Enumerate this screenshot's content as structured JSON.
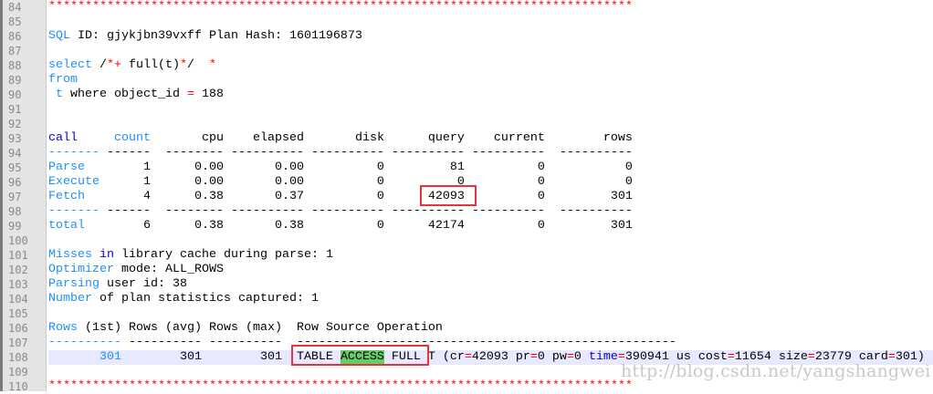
{
  "colors": {
    "keyword_dark": "#0000e0",
    "keyword_light": "#1e8cff",
    "operator": "#ff0000",
    "highlight_match": "#66cc66",
    "current_line": "#e8e8ff",
    "annotation_box": "#e8333a"
  },
  "watermark": "http://blog.csdn.net/yangshangwei",
  "current_line": 108,
  "lines": [
    {
      "n": "84",
      "segs": [
        {
          "t": "********************************************************************************",
          "c": "op"
        }
      ]
    },
    {
      "n": "85",
      "segs": []
    },
    {
      "n": "86",
      "segs": [
        {
          "t": "SQL",
          "c": "k2"
        },
        {
          "t": " ID: gjykjbn39vxff Plan Hash: 1601196873",
          "c": ""
        }
      ]
    },
    {
      "n": "87",
      "segs": []
    },
    {
      "n": "88",
      "segs": [
        {
          "t": "select",
          "c": "k2"
        },
        {
          "t": " /",
          "c": ""
        },
        {
          "t": "*+",
          "c": "op"
        },
        {
          "t": " full(t)",
          "c": ""
        },
        {
          "t": "*",
          "c": "op"
        },
        {
          "t": "/  ",
          "c": ""
        },
        {
          "t": "*",
          "c": "op"
        }
      ]
    },
    {
      "n": "89",
      "segs": [
        {
          "t": "from",
          "c": "k2"
        }
      ]
    },
    {
      "n": "90",
      "segs": [
        {
          "t": " t",
          "c": "k2"
        },
        {
          "t": " where object_id ",
          "c": ""
        },
        {
          "t": "=",
          "c": "op"
        },
        {
          "t": " 188",
          "c": ""
        }
      ]
    },
    {
      "n": "91",
      "segs": []
    },
    {
      "n": "92",
      "segs": []
    },
    {
      "n": "93",
      "segs": [
        {
          "t": "call",
          "c": "k1"
        },
        {
          "t": "     ",
          "c": ""
        },
        {
          "t": "count",
          "c": "k2"
        },
        {
          "t": "       cpu    elapsed       disk      query    current        rows",
          "c": ""
        }
      ]
    },
    {
      "n": "94",
      "segs": [
        {
          "t": "-------",
          "c": "k2"
        },
        {
          "t": " ------  -------- ---------- ---------- ---------- ----------  ----------",
          "c": ""
        }
      ]
    },
    {
      "n": "95",
      "segs": [
        {
          "t": "Parse",
          "c": "k2"
        },
        {
          "t": "        1      0.00       0.00          0         81          0           0",
          "c": ""
        }
      ]
    },
    {
      "n": "96",
      "segs": [
        {
          "t": "Execute",
          "c": "k2"
        },
        {
          "t": "      1      0.00       0.00          0          0          0           0",
          "c": ""
        }
      ]
    },
    {
      "n": "97",
      "segs": [
        {
          "t": "Fetch",
          "c": "k2"
        },
        {
          "t": "        4      0.38       0.37          0      42093          0         301",
          "c": ""
        }
      ]
    },
    {
      "n": "98",
      "segs": [
        {
          "t": "-------",
          "c": "k2"
        },
        {
          "t": " ------  -------- ---------- ---------- ---------- ----------  ----------",
          "c": ""
        }
      ]
    },
    {
      "n": "99",
      "segs": [
        {
          "t": "total",
          "c": "k2"
        },
        {
          "t": "        6      0.38       0.38          0      42174          0         301",
          "c": ""
        }
      ]
    },
    {
      "n": "100",
      "segs": []
    },
    {
      "n": "101",
      "segs": [
        {
          "t": "Misses",
          "c": "k2"
        },
        {
          "t": " ",
          "c": ""
        },
        {
          "t": "in",
          "c": "k1"
        },
        {
          "t": " library cache during parse: 1",
          "c": ""
        }
      ]
    },
    {
      "n": "102",
      "segs": [
        {
          "t": "Optimizer",
          "c": "k2"
        },
        {
          "t": " mode: ALL_ROWS",
          "c": ""
        }
      ]
    },
    {
      "n": "103",
      "segs": [
        {
          "t": "Parsing",
          "c": "k2"
        },
        {
          "t": " user id: 38",
          "c": ""
        }
      ]
    },
    {
      "n": "104",
      "segs": [
        {
          "t": "Number",
          "c": "k2"
        },
        {
          "t": " of plan statistics captured: 1",
          "c": ""
        }
      ]
    },
    {
      "n": "105",
      "segs": []
    },
    {
      "n": "106",
      "segs": [
        {
          "t": "Rows",
          "c": "k2"
        },
        {
          "t": " (1st) Rows (avg) Rows (max)  Row Source Operation",
          "c": ""
        }
      ]
    },
    {
      "n": "107",
      "segs": [
        {
          "t": "----------",
          "c": "k2"
        },
        {
          "t": " ---------- ----------  ----------------------------------------------------",
          "c": ""
        }
      ]
    },
    {
      "n": "108",
      "segs": [
        {
          "t": "       301",
          "c": "k2"
        },
        {
          "t": "        301        301  TABLE ",
          "c": ""
        },
        {
          "t": "ACCESS",
          "c": "ac"
        },
        {
          "t": " FULL T (cr",
          "c": ""
        },
        {
          "t": "=",
          "c": "op"
        },
        {
          "t": "42093 pr",
          "c": ""
        },
        {
          "t": "=",
          "c": "op"
        },
        {
          "t": "0 pw",
          "c": ""
        },
        {
          "t": "=",
          "c": "op"
        },
        {
          "t": "0 ",
          "c": ""
        },
        {
          "t": "time",
          "c": "k1"
        },
        {
          "t": "=",
          "c": "op"
        },
        {
          "t": "390941 us cost",
          "c": ""
        },
        {
          "t": "=",
          "c": "op"
        },
        {
          "t": "11654 size",
          "c": ""
        },
        {
          "t": "=",
          "c": "op"
        },
        {
          "t": "23779 card",
          "c": ""
        },
        {
          "t": "=",
          "c": "op"
        },
        {
          "t": "301)",
          "c": ""
        }
      ]
    },
    {
      "n": "109",
      "segs": []
    },
    {
      "n": "110",
      "segs": [
        {
          "t": "********************************************************************************",
          "c": "op"
        }
      ]
    }
  ]
}
